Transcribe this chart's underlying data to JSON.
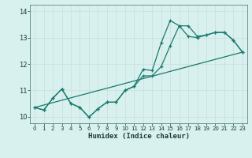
{
  "x_range": [
    -0.5,
    23.5
  ],
  "y_range": [
    9.75,
    14.25
  ],
  "yticks": [
    10,
    11,
    12,
    13,
    14
  ],
  "xticks": [
    0,
    1,
    2,
    3,
    4,
    5,
    6,
    7,
    8,
    9,
    10,
    11,
    12,
    13,
    14,
    15,
    16,
    17,
    18,
    19,
    20,
    21,
    22,
    23
  ],
  "xlabel": "Humidex (Indice chaleur)",
  "line_color": "#1a7a6e",
  "bg_color": "#d8f0ee",
  "grid_color": "#c8dede",
  "line1_x": [
    0,
    1,
    2,
    3,
    4,
    5,
    6,
    7,
    8,
    9,
    10,
    11,
    12,
    13,
    14,
    15,
    16,
    17,
    18,
    19,
    20,
    21,
    22,
    23
  ],
  "line1_y": [
    10.35,
    10.25,
    10.7,
    11.05,
    10.5,
    10.35,
    9.98,
    10.3,
    10.55,
    10.55,
    11.0,
    11.15,
    11.55,
    11.55,
    11.9,
    12.7,
    13.45,
    13.05,
    13.0,
    13.1,
    13.2,
    13.2,
    12.9,
    12.45
  ],
  "line2_x": [
    0,
    1,
    2,
    3,
    4,
    5,
    6,
    7,
    8,
    9,
    10,
    11,
    12,
    13,
    14,
    15,
    16,
    17,
    18,
    19,
    20,
    21,
    22,
    23
  ],
  "line2_y": [
    10.35,
    10.25,
    10.7,
    11.05,
    10.5,
    10.35,
    9.98,
    10.3,
    10.55,
    10.55,
    11.0,
    11.15,
    11.8,
    11.75,
    12.8,
    13.65,
    13.45,
    13.45,
    13.05,
    13.1,
    13.2,
    13.2,
    12.9,
    12.45
  ],
  "trend_x": [
    0,
    23
  ],
  "trend_y": [
    10.35,
    12.45
  ],
  "fig_width": 3.2,
  "fig_height": 2.0,
  "dpi": 100
}
